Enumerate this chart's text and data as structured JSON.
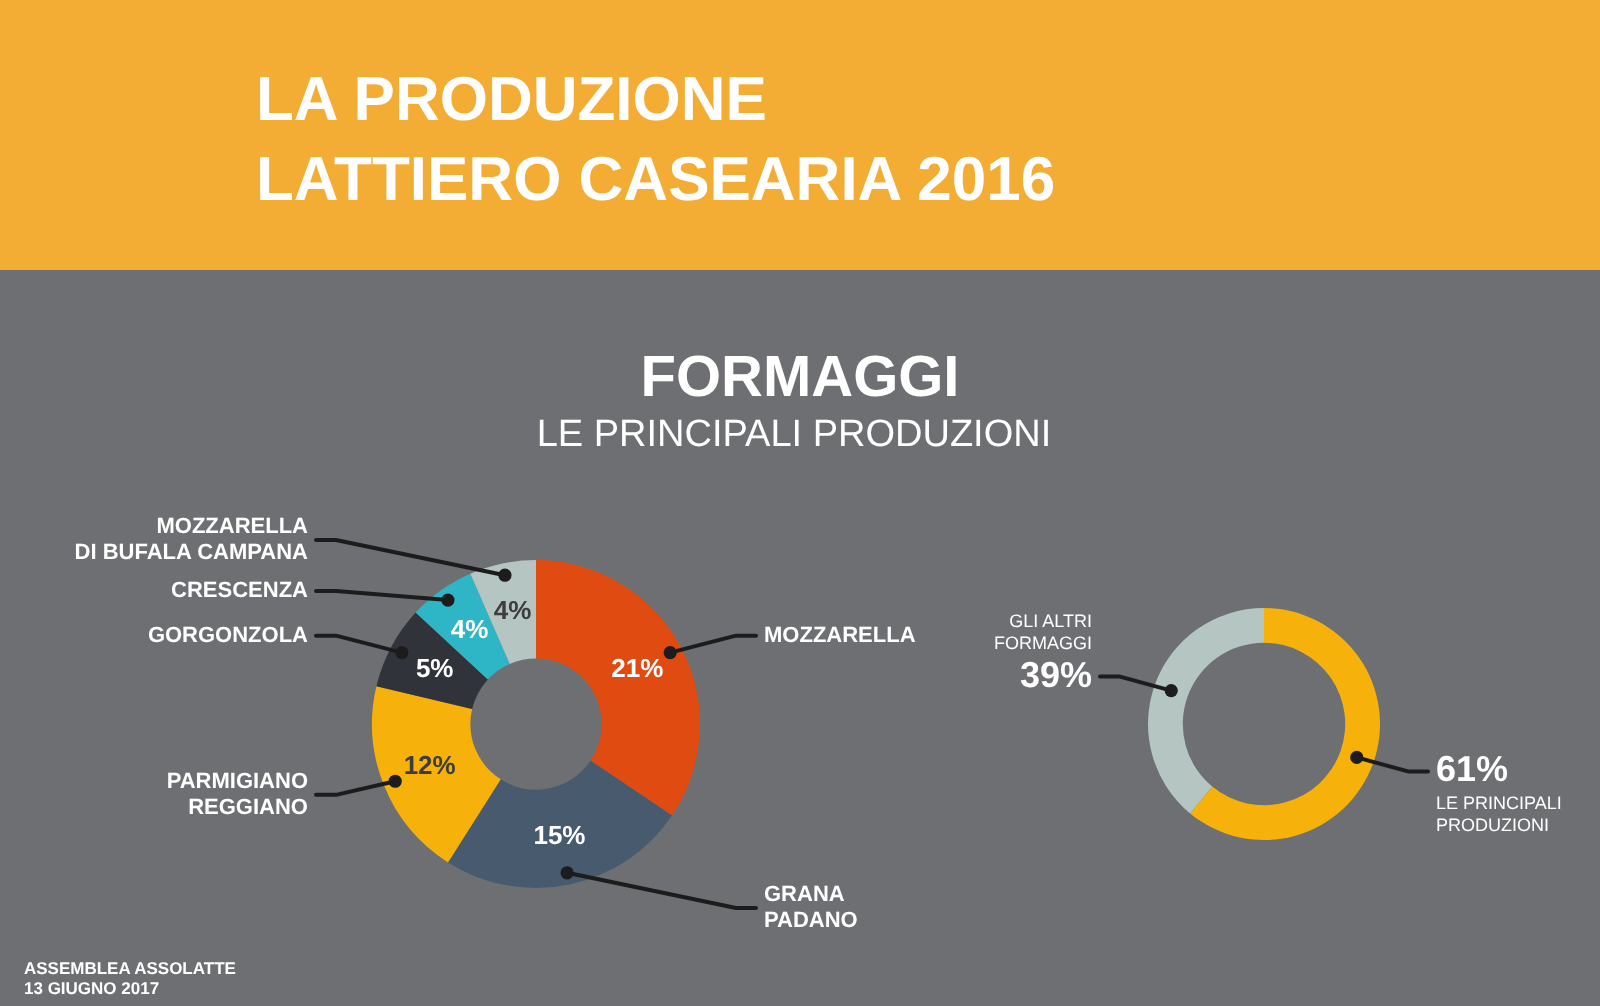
{
  "chart_data": [
    {
      "type": "donut",
      "title": "LA PRODUZIONE\nLATTIERO CASEARIA 2016",
      "subtitle": "FORMAGGI",
      "annotations": [
        "LE PRINCIPALI PRODUZIONI",
        "ASSEMBLEA ASSOLATTE\n13 GIUGNO 2017"
      ],
      "categories": [
        "MOZZARELLA",
        "GRANA\nPADANO",
        "PARMIGIANO\nREGGIANO",
        "GORGONZOLA",
        "CRESCENZA",
        "MOZZARELLA\nDI BUFALA CAMPANA"
      ],
      "values": [
        21,
        15,
        12,
        5,
        4,
        4
      ],
      "colors": [
        "#e04b12",
        "#475a6e",
        "#f6b20b",
        "#31333b",
        "#2fb6c6",
        "#b4c5c2"
      ],
      "value_labels": [
        "21%",
        "15%",
        "12%",
        "5%",
        "4%",
        "4%"
      ]
    },
    {
      "type": "donut",
      "categories": [
        "LE PRINCIPALI\nPRODUZIONI",
        "GLI ALTRI\nFORMAGGI"
      ],
      "values": [
        61,
        39
      ],
      "colors": [
        "#f6b20b",
        "#b4c5c2"
      ],
      "value_labels": [
        "61%",
        "39%"
      ]
    }
  ]
}
